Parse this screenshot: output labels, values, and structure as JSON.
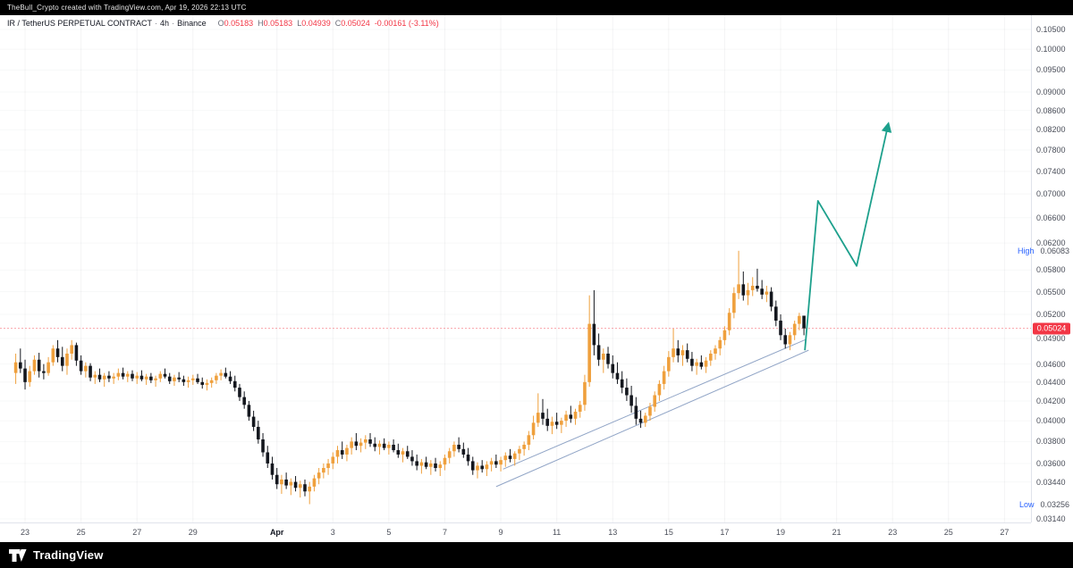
{
  "attribution": "TheBull_Crypto created with TradingView.com, Apr 19, 2026 22:13 UTC",
  "legend": {
    "symbol": "IR / TetherUS PERPETUAL CONTRACT",
    "sep": "·",
    "interval": "4h",
    "exchange": "Binance",
    "o_label": "O",
    "o": "0.05183",
    "h_label": "H",
    "h": "0.05183",
    "l_label": "L",
    "l": "0.04939",
    "c_label": "C",
    "c": "0.05024",
    "change": "-0.00161 (-3.11%)"
  },
  "price_axis": {
    "ticks": [
      "0.10500",
      "0.10000",
      "0.09500",
      "0.09000",
      "0.08600",
      "0.08200",
      "0.07800",
      "0.07400",
      "0.07000",
      "0.06600",
      "0.06200",
      "0.05800",
      "0.05500",
      "0.05200",
      "0.04900",
      "0.04600",
      "0.04400",
      "0.04200",
      "0.04000",
      "0.03800",
      "0.03600",
      "0.03440",
      "0.03140"
    ],
    "high_label": "High",
    "high_value": "0.06083",
    "low_label": "Low",
    "low_value": "0.03256",
    "last_price": "0.05024"
  },
  "time_axis": {
    "labels": [
      {
        "text": "23",
        "idx": 2
      },
      {
        "text": "25",
        "idx": 14
      },
      {
        "text": "27",
        "idx": 26
      },
      {
        "text": "29",
        "idx": 38
      },
      {
        "text": "Apr",
        "idx": 56
      },
      {
        "text": "3",
        "idx": 68
      },
      {
        "text": "5",
        "idx": 80
      },
      {
        "text": "7",
        "idx": 92
      },
      {
        "text": "9",
        "idx": 104
      },
      {
        "text": "11",
        "idx": 116
      },
      {
        "text": "13",
        "idx": 128
      },
      {
        "text": "15",
        "idx": 140
      },
      {
        "text": "17",
        "idx": 152
      },
      {
        "text": "19",
        "idx": 164
      },
      {
        "text": "21",
        "idx": 176
      },
      {
        "text": "23",
        "idx": 188
      },
      {
        "text": "25",
        "idx": 200
      },
      {
        "text": "27",
        "idx": 212
      }
    ]
  },
  "footer": {
    "brand": "TradingView"
  },
  "colors": {
    "up": "#EFA03D",
    "down": "#14171E",
    "projection": "#1DA08C",
    "trendline": "#8CA1C4",
    "badge": "#F23645",
    "grid": "rgba(42,46,57,0.05)",
    "hl_blue": "#2962FF"
  },
  "chart_data": {
    "type": "candlestick",
    "title": "IR / TetherUS PERPETUAL CONTRACT · 4h · Binance",
    "timeframe": "4h",
    "scale": "log",
    "y_top": 0.105,
    "y_bottom": 0.0314,
    "period_high": 0.06083,
    "period_low": 0.03256,
    "last_close": 0.05024,
    "x_range": [
      "Mar 22",
      "Apr 27"
    ],
    "candles": [
      [
        0.045,
        0.0472,
        0.0438,
        0.0462
      ],
      [
        0.0462,
        0.0478,
        0.045,
        0.0455
      ],
      [
        0.0455,
        0.0465,
        0.0432,
        0.044
      ],
      [
        0.044,
        0.0458,
        0.0435,
        0.0452
      ],
      [
        0.0452,
        0.047,
        0.0448,
        0.0465
      ],
      [
        0.0465,
        0.0473,
        0.0445,
        0.0452
      ],
      [
        0.0452,
        0.046,
        0.0443,
        0.045
      ],
      [
        0.045,
        0.0468,
        0.0447,
        0.0462
      ],
      [
        0.0462,
        0.0482,
        0.0458,
        0.0478
      ],
      [
        0.0478,
        0.0488,
        0.0462,
        0.0468
      ],
      [
        0.0468,
        0.048,
        0.0452,
        0.0458
      ],
      [
        0.0458,
        0.0478,
        0.0448,
        0.0472
      ],
      [
        0.0472,
        0.0488,
        0.0465,
        0.0482
      ],
      [
        0.0482,
        0.0485,
        0.0458,
        0.0464
      ],
      [
        0.0464,
        0.047,
        0.0448,
        0.0452
      ],
      [
        0.0452,
        0.0462,
        0.0445,
        0.0458
      ],
      [
        0.0458,
        0.0461,
        0.0441,
        0.0445
      ],
      [
        0.0445,
        0.0452,
        0.0438,
        0.0448
      ],
      [
        0.0448,
        0.0455,
        0.044,
        0.0443
      ],
      [
        0.0443,
        0.045,
        0.0435,
        0.0447
      ],
      [
        0.0447,
        0.0452,
        0.044,
        0.0444
      ],
      [
        0.0444,
        0.045,
        0.0438,
        0.0446
      ],
      [
        0.0446,
        0.0455,
        0.0442,
        0.045
      ],
      [
        0.045,
        0.0456,
        0.0443,
        0.0446
      ],
      [
        0.0446,
        0.0452,
        0.044,
        0.0449
      ],
      [
        0.0449,
        0.0453,
        0.0441,
        0.0444
      ],
      [
        0.0444,
        0.0451,
        0.0438,
        0.0447
      ],
      [
        0.0447,
        0.0453,
        0.0441,
        0.0443
      ],
      [
        0.0443,
        0.0449,
        0.0437,
        0.0446
      ],
      [
        0.0446,
        0.045,
        0.0439,
        0.0442
      ],
      [
        0.0442,
        0.0447,
        0.0435,
        0.0444
      ],
      [
        0.0444,
        0.0452,
        0.044,
        0.0449
      ],
      [
        0.0449,
        0.0455,
        0.0444,
        0.0446
      ],
      [
        0.0446,
        0.045,
        0.0438,
        0.0441
      ],
      [
        0.0441,
        0.0448,
        0.0436,
        0.0445
      ],
      [
        0.0445,
        0.0451,
        0.044,
        0.0443
      ],
      [
        0.0443,
        0.0447,
        0.0436,
        0.044
      ],
      [
        0.044,
        0.0446,
        0.0434,
        0.0442
      ],
      [
        0.0442,
        0.0448,
        0.0437,
        0.0444
      ],
      [
        0.0444,
        0.0449,
        0.0438,
        0.044
      ],
      [
        0.044,
        0.0445,
        0.0433,
        0.0437
      ],
      [
        0.0437,
        0.0443,
        0.0431,
        0.0439
      ],
      [
        0.0439,
        0.0445,
        0.0434,
        0.0442
      ],
      [
        0.0442,
        0.045,
        0.0438,
        0.0447
      ],
      [
        0.0447,
        0.0454,
        0.0442,
        0.045
      ],
      [
        0.045,
        0.0456,
        0.0444,
        0.0446
      ],
      [
        0.0446,
        0.0452,
        0.0438,
        0.0441
      ],
      [
        0.0441,
        0.0447,
        0.043,
        0.0434
      ],
      [
        0.0434,
        0.0438,
        0.042,
        0.0424
      ],
      [
        0.0424,
        0.043,
        0.0412,
        0.0416
      ],
      [
        0.0416,
        0.042,
        0.04,
        0.0404
      ],
      [
        0.0404,
        0.041,
        0.039,
        0.0394
      ],
      [
        0.0394,
        0.04,
        0.0378,
        0.0382
      ],
      [
        0.0382,
        0.0388,
        0.0366,
        0.037
      ],
      [
        0.037,
        0.0376,
        0.0356,
        0.036
      ],
      [
        0.036,
        0.0366,
        0.0346,
        0.035
      ],
      [
        0.035,
        0.0356,
        0.0338,
        0.0342
      ],
      [
        0.0342,
        0.035,
        0.0334,
        0.0346
      ],
      [
        0.0346,
        0.0352,
        0.0338,
        0.0341
      ],
      [
        0.0341,
        0.0347,
        0.0333,
        0.0344
      ],
      [
        0.0344,
        0.0349,
        0.0336,
        0.0339
      ],
      [
        0.0339,
        0.0345,
        0.0331,
        0.0342
      ],
      [
        0.0342,
        0.0346,
        0.0332,
        0.0336
      ],
      [
        0.0336,
        0.0344,
        0.03256,
        0.034
      ],
      [
        0.034,
        0.035,
        0.0336,
        0.0347
      ],
      [
        0.0347,
        0.0356,
        0.0342,
        0.0352
      ],
      [
        0.0352,
        0.036,
        0.0347,
        0.0356
      ],
      [
        0.0356,
        0.0364,
        0.035,
        0.036
      ],
      [
        0.036,
        0.037,
        0.0355,
        0.0366
      ],
      [
        0.0366,
        0.0376,
        0.036,
        0.0372
      ],
      [
        0.0372,
        0.038,
        0.0364,
        0.0368
      ],
      [
        0.0368,
        0.0377,
        0.0362,
        0.0374
      ],
      [
        0.0374,
        0.0384,
        0.0368,
        0.038
      ],
      [
        0.038,
        0.0388,
        0.0372,
        0.0376
      ],
      [
        0.0376,
        0.0383,
        0.037,
        0.0379
      ],
      [
        0.0379,
        0.0386,
        0.0373,
        0.0382
      ],
      [
        0.0382,
        0.0388,
        0.0375,
        0.0378
      ],
      [
        0.0378,
        0.0384,
        0.0371,
        0.0375
      ],
      [
        0.0375,
        0.0381,
        0.0368,
        0.0378
      ],
      [
        0.0378,
        0.0383,
        0.0372,
        0.0374
      ],
      [
        0.0374,
        0.038,
        0.0368,
        0.0377
      ],
      [
        0.0377,
        0.0382,
        0.037,
        0.0372
      ],
      [
        0.0372,
        0.0378,
        0.0365,
        0.0368
      ],
      [
        0.0368,
        0.0374,
        0.0361,
        0.0371
      ],
      [
        0.0371,
        0.0376,
        0.0364,
        0.0366
      ],
      [
        0.0366,
        0.0372,
        0.0358,
        0.0362
      ],
      [
        0.0362,
        0.0368,
        0.0354,
        0.0358
      ],
      [
        0.0358,
        0.0364,
        0.0351,
        0.0361
      ],
      [
        0.0361,
        0.0366,
        0.0355,
        0.0357
      ],
      [
        0.0357,
        0.0363,
        0.035,
        0.036
      ],
      [
        0.036,
        0.0365,
        0.0353,
        0.0356
      ],
      [
        0.0356,
        0.0362,
        0.0349,
        0.0359
      ],
      [
        0.0359,
        0.0368,
        0.0354,
        0.0365
      ],
      [
        0.0365,
        0.0374,
        0.036,
        0.0371
      ],
      [
        0.0371,
        0.038,
        0.0366,
        0.0377
      ],
      [
        0.0377,
        0.0384,
        0.037,
        0.0373
      ],
      [
        0.0373,
        0.0379,
        0.0365,
        0.0368
      ],
      [
        0.0368,
        0.0374,
        0.0358,
        0.0362
      ],
      [
        0.0362,
        0.0366,
        0.035,
        0.0354
      ],
      [
        0.0354,
        0.0361,
        0.0347,
        0.0358
      ],
      [
        0.0358,
        0.0363,
        0.0352,
        0.0355
      ],
      [
        0.0355,
        0.0362,
        0.0349,
        0.0359
      ],
      [
        0.0359,
        0.0365,
        0.0353,
        0.0362
      ],
      [
        0.0362,
        0.0368,
        0.0356,
        0.0359
      ],
      [
        0.0359,
        0.0366,
        0.0353,
        0.0363
      ],
      [
        0.0363,
        0.037,
        0.0357,
        0.0367
      ],
      [
        0.0367,
        0.0373,
        0.0361,
        0.0364
      ],
      [
        0.0364,
        0.0371,
        0.0358,
        0.0369
      ],
      [
        0.0369,
        0.0376,
        0.0363,
        0.0373
      ],
      [
        0.0373,
        0.038,
        0.0367,
        0.0377
      ],
      [
        0.0377,
        0.039,
        0.0372,
        0.0386
      ],
      [
        0.0386,
        0.0405,
        0.0382,
        0.0398
      ],
      [
        0.0398,
        0.0428,
        0.0394,
        0.0408
      ],
      [
        0.0408,
        0.0422,
        0.0396,
        0.0402
      ],
      [
        0.0402,
        0.0412,
        0.039,
        0.0395
      ],
      [
        0.0395,
        0.0404,
        0.0387,
        0.0399
      ],
      [
        0.0399,
        0.0408,
        0.0392,
        0.0396
      ],
      [
        0.0396,
        0.0403,
        0.0388,
        0.04
      ],
      [
        0.04,
        0.041,
        0.0394,
        0.0406
      ],
      [
        0.0406,
        0.0415,
        0.0398,
        0.0402
      ],
      [
        0.0402,
        0.0412,
        0.0396,
        0.0409
      ],
      [
        0.0409,
        0.042,
        0.0403,
        0.0416
      ],
      [
        0.0416,
        0.0448,
        0.041,
        0.044
      ],
      [
        0.044,
        0.0545,
        0.0435,
        0.0508
      ],
      [
        0.0508,
        0.0552,
        0.047,
        0.0482
      ],
      [
        0.0482,
        0.0496,
        0.0458,
        0.0465
      ],
      [
        0.0465,
        0.0478,
        0.045,
        0.0472
      ],
      [
        0.0472,
        0.048,
        0.0455,
        0.046
      ],
      [
        0.046,
        0.047,
        0.0444,
        0.045
      ],
      [
        0.045,
        0.0462,
        0.0438,
        0.0443
      ],
      [
        0.0443,
        0.0452,
        0.0428,
        0.0434
      ],
      [
        0.0434,
        0.0444,
        0.042,
        0.0426
      ],
      [
        0.0426,
        0.0436,
        0.0408,
        0.0415
      ],
      [
        0.0415,
        0.0424,
        0.0396,
        0.0402
      ],
      [
        0.0402,
        0.041,
        0.0393,
        0.0398
      ],
      [
        0.0398,
        0.0408,
        0.0394,
        0.0405
      ],
      [
        0.0405,
        0.0418,
        0.04,
        0.0414
      ],
      [
        0.0414,
        0.043,
        0.0409,
        0.0426
      ],
      [
        0.0426,
        0.0442,
        0.042,
        0.0438
      ],
      [
        0.0438,
        0.0458,
        0.0432,
        0.0452
      ],
      [
        0.0452,
        0.0475,
        0.0446,
        0.0468
      ],
      [
        0.0468,
        0.0502,
        0.0462,
        0.0478
      ],
      [
        0.0478,
        0.0488,
        0.0462,
        0.047
      ],
      [
        0.047,
        0.0482,
        0.0458,
        0.0476
      ],
      [
        0.0476,
        0.0484,
        0.0462,
        0.0466
      ],
      [
        0.0466,
        0.0474,
        0.0452,
        0.0458
      ],
      [
        0.0458,
        0.0466,
        0.0448,
        0.0462
      ],
      [
        0.0462,
        0.047,
        0.0454,
        0.0457
      ],
      [
        0.0457,
        0.0468,
        0.045,
        0.0464
      ],
      [
        0.0464,
        0.0476,
        0.0458,
        0.0472
      ],
      [
        0.0472,
        0.0482,
        0.0465,
        0.0478
      ],
      [
        0.0478,
        0.0492,
        0.047,
        0.0488
      ],
      [
        0.0488,
        0.0505,
        0.0482,
        0.05
      ],
      [
        0.05,
        0.0528,
        0.0494,
        0.0522
      ],
      [
        0.0522,
        0.0556,
        0.0515,
        0.0548
      ],
      [
        0.0548,
        0.06083,
        0.054,
        0.056
      ],
      [
        0.056,
        0.0578,
        0.0538,
        0.0545
      ],
      [
        0.0545,
        0.0562,
        0.0532,
        0.0552
      ],
      [
        0.0552,
        0.057,
        0.0544,
        0.0558
      ],
      [
        0.0558,
        0.0582,
        0.055,
        0.0554
      ],
      [
        0.0554,
        0.0566,
        0.054,
        0.0546
      ],
      [
        0.0546,
        0.0558,
        0.0536,
        0.055
      ],
      [
        0.055,
        0.0556,
        0.0524,
        0.053
      ],
      [
        0.053,
        0.0538,
        0.0505,
        0.0512
      ],
      [
        0.0512,
        0.052,
        0.0488,
        0.0494
      ],
      [
        0.0494,
        0.0502,
        0.0478,
        0.0483
      ],
      [
        0.0483,
        0.0498,
        0.0476,
        0.0494
      ],
      [
        0.0494,
        0.0512,
        0.0488,
        0.0508
      ],
      [
        0.0508,
        0.0522,
        0.05,
        0.0518
      ],
      [
        0.05183,
        0.05183,
        0.04939,
        0.05024
      ]
    ],
    "trendlines": [
      {
        "from": [
          103,
          0.034
        ],
        "to": [
          170,
          0.0476
        ]
      },
      {
        "from": [
          104.5,
          0.0355
        ],
        "to": [
          169.5,
          0.0489
        ]
      }
    ],
    "projection": {
      "points": [
        [
          169.2,
          0.0476
        ],
        [
          172,
          0.0688
        ],
        [
          180.3,
          0.0586
        ],
        [
          187,
          0.0828
        ]
      ],
      "style": "zigzag-arrow"
    }
  }
}
